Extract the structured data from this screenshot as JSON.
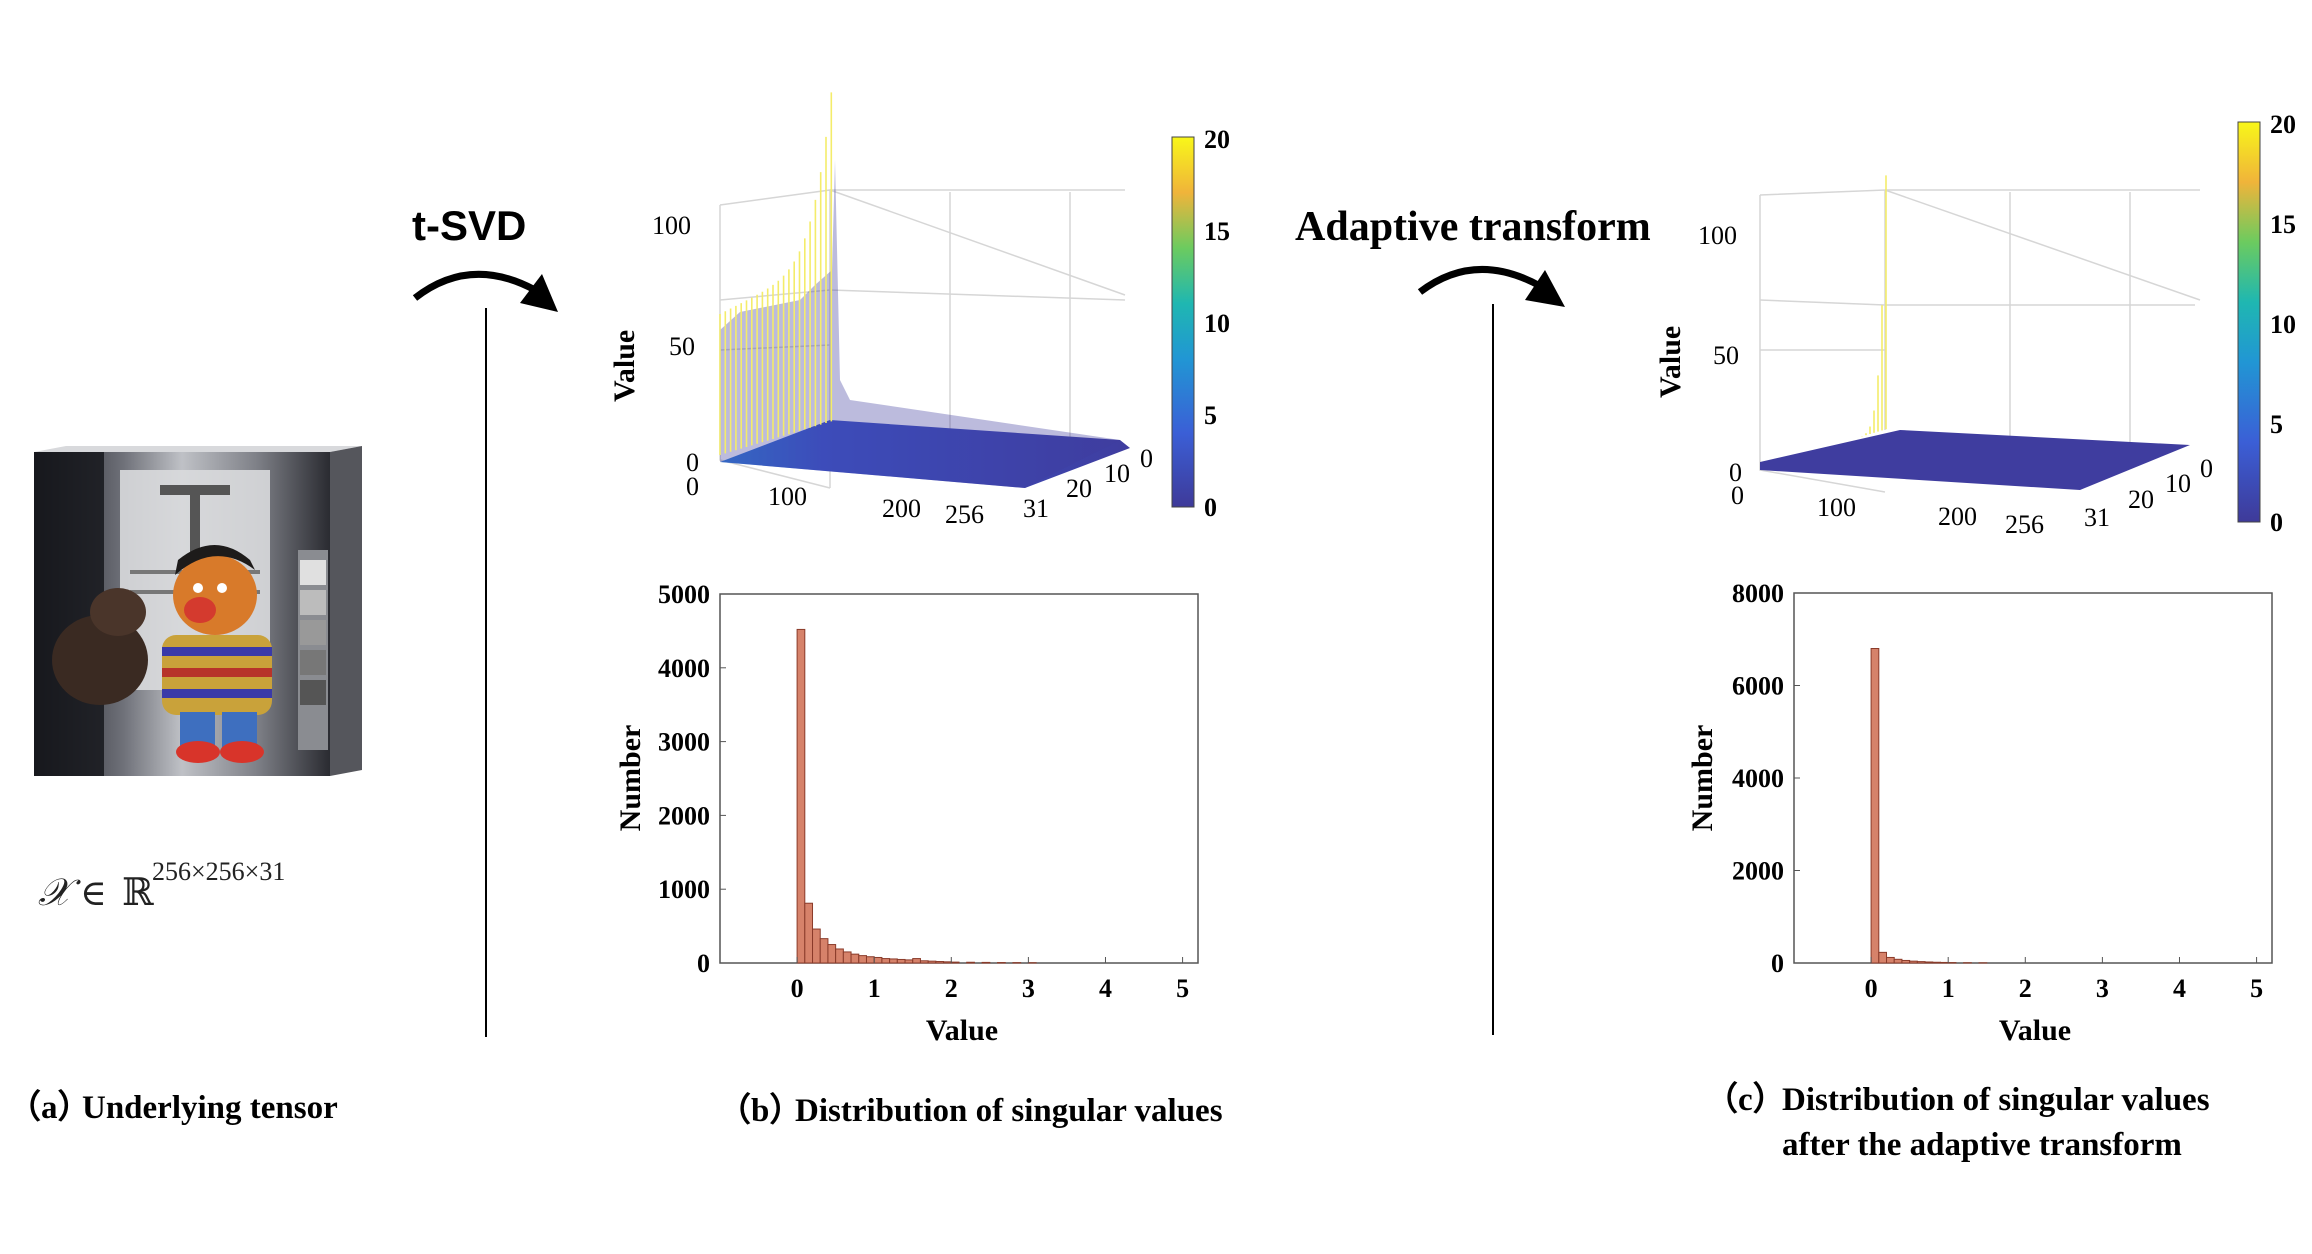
{
  "panel_a": {
    "caption_label": "（a）",
    "caption_text": "Underlying tensor",
    "tensor_symbol": "𝒳",
    "tensor_relation": "∈",
    "tensor_field": "ℝ",
    "tensor_dims": "256×256×31"
  },
  "arrow_1": {
    "label": "t-SVD"
  },
  "arrow_2": {
    "label": "Adaptive transform"
  },
  "panel_b": {
    "caption_label": "（b）",
    "caption_line1": "Distribution of singular values",
    "surface": {
      "zlabel": "Value",
      "z_ticks": [
        "0",
        "50",
        "100"
      ],
      "x_ticks": [
        "0",
        "100",
        "200",
        "256"
      ],
      "y_ticks": [
        "31",
        "20",
        "10",
        "0"
      ],
      "colorbar_ticks": [
        "0",
        "5",
        "10",
        "15",
        "20"
      ],
      "colorbar_range": [
        0,
        20
      ],
      "peak_value": 130,
      "front_level": 60
    },
    "histogram": {
      "xlabel": "Value",
      "ylabel": "Number",
      "y_ticks": [
        "0",
        "1000",
        "2000",
        "3000",
        "4000",
        "5000"
      ],
      "x_ticks": [
        "0",
        "1",
        "2",
        "3",
        "4",
        "5"
      ],
      "bar_color": "#d6826a"
    }
  },
  "panel_c": {
    "caption_label": "（c）",
    "caption_line1": "Distribution of singular values",
    "caption_line2": "after the adaptive transform",
    "surface": {
      "zlabel": "Value",
      "z_ticks": [
        "0",
        "50",
        "100"
      ],
      "x_ticks": [
        "0",
        "100",
        "200",
        "256"
      ],
      "y_ticks": [
        "31",
        "20",
        "10",
        "0"
      ],
      "colorbar_ticks": [
        "0",
        "5",
        "10",
        "15",
        "20"
      ],
      "colorbar_range": [
        0,
        20
      ],
      "peak_value": 108,
      "front_level": 0
    },
    "histogram": {
      "xlabel": "Value",
      "ylabel": "Number",
      "y_ticks": [
        "0",
        "2000",
        "4000",
        "6000",
        "8000"
      ],
      "x_ticks": [
        "0",
        "1",
        "2",
        "3",
        "4",
        "5"
      ],
      "bar_color": "#d6826a"
    }
  },
  "chart_data": [
    {
      "type": "bar",
      "name": "histogram-b",
      "xlabel": "Value",
      "ylabel": "Number",
      "xlim": [
        -1,
        5.2
      ],
      "ylim": [
        0,
        5000
      ],
      "bin_width": 0.1,
      "bin_starts": [
        0.0,
        0.1,
        0.2,
        0.3,
        0.4,
        0.5,
        0.6,
        0.7,
        0.8,
        0.9,
        1.0,
        1.1,
        1.2,
        1.3,
        1.4,
        1.5,
        1.6,
        1.7,
        1.8,
        1.9,
        2.0,
        2.2,
        2.4,
        2.6,
        2.8,
        3.0
      ],
      "values": [
        4520,
        810,
        460,
        330,
        250,
        190,
        150,
        120,
        100,
        85,
        75,
        60,
        55,
        48,
        42,
        60,
        30,
        25,
        20,
        16,
        12,
        10,
        8,
        6,
        5,
        4
      ]
    },
    {
      "type": "bar",
      "name": "histogram-c",
      "xlabel": "Value",
      "ylabel": "Number",
      "xlim": [
        -1,
        5.2
      ],
      "ylim": [
        0,
        8000
      ],
      "bin_width": 0.1,
      "bin_starts": [
        0.0,
        0.1,
        0.2,
        0.3,
        0.4,
        0.5,
        0.6,
        0.7,
        0.8,
        0.9,
        1.0,
        1.2,
        1.4
      ],
      "values": [
        6800,
        230,
        120,
        80,
        55,
        40,
        30,
        22,
        16,
        12,
        9,
        6,
        4
      ]
    }
  ]
}
